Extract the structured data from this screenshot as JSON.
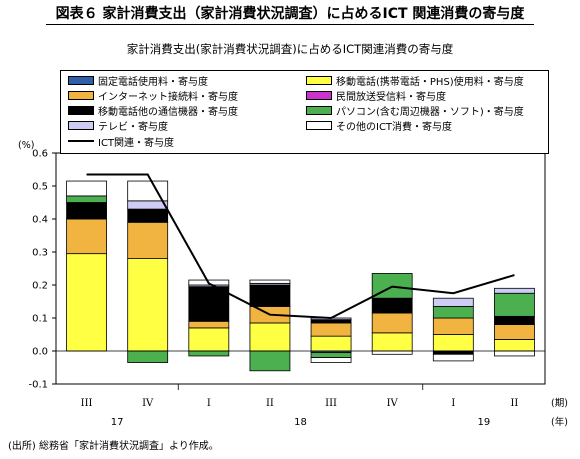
{
  "figure_title": "図表６  家計消費支出（家計消費状況調査）に占めるICT 関連消費の寄与度",
  "source_note": "(出所) 総務省「家計消費状況調査」より作成。",
  "chart_data": {
    "type": "bar",
    "stacked": true,
    "title": "家計消費支出(家計消費状況調査)に占めるICT関連消費の寄与度",
    "ylabel": "(%)",
    "xlabel_suffix_top": "(期)",
    "xlabel_suffix_bottom": "(年)",
    "ylim": [
      -0.1,
      0.6
    ],
    "yticks": [
      -0.1,
      0.0,
      0.1,
      0.2,
      0.3,
      0.4,
      0.5,
      0.6
    ],
    "ytick_labels": [
      "-0.1",
      "0.0",
      "0.1",
      "0.2",
      "0.3",
      "0.4",
      "0.5",
      "0.6"
    ],
    "categories": [
      "III",
      "IV",
      "I",
      "II",
      "III",
      "IV",
      "I",
      "II"
    ],
    "year_labels": [
      {
        "label": "17",
        "from": 0,
        "to": 1
      },
      {
        "label": "18",
        "from": 2,
        "to": 5
      },
      {
        "label": "19",
        "from": 6,
        "to": 7
      }
    ],
    "legend_position": "top",
    "series": [
      {
        "name": "固定電話使用料・寄与度",
        "color": "#2e5fa8",
        "values": [
          0.0,
          0.0,
          0.0,
          0.0,
          -0.005,
          0.0,
          0.0,
          0.0
        ]
      },
      {
        "name": "移動電話(携帯電話・PHS)使用料・寄与度",
        "color": "#ffff44",
        "values": [
          0.295,
          0.28,
          0.07,
          0.085,
          0.045,
          0.055,
          0.05,
          0.035
        ]
      },
      {
        "name": "インターネット接続料・寄与度",
        "color": "#f2b441",
        "values": [
          0.105,
          0.11,
          0.02,
          0.05,
          0.04,
          0.06,
          0.05,
          0.045
        ]
      },
      {
        "name": "民間放送受信料・寄与度",
        "color": "#cc33cc",
        "values": [
          0.0,
          0.0,
          0.0,
          0.0,
          0.0,
          0.0,
          0.0,
          0.0
        ]
      },
      {
        "name": "移動電話他の通信機器・寄与度",
        "color": "#000000",
        "values": [
          0.05,
          0.04,
          0.105,
          0.065,
          0.01,
          0.045,
          -0.01,
          0.025
        ]
      },
      {
        "name": "パソコン(含む周辺機器・ソフト)・寄与度",
        "color": "#4caf50",
        "values": [
          0.02,
          -0.035,
          -0.015,
          -0.06,
          -0.015,
          0.075,
          0.035,
          0.07
        ]
      },
      {
        "name": "テレビ・寄与度",
        "color": "#ccccf5",
        "values": [
          0.0,
          0.025,
          0.005,
          0.005,
          0.005,
          0.0,
          0.025,
          0.015
        ]
      },
      {
        "name": "その他のICT消費・寄与度",
        "color": "#ffffff",
        "values": [
          0.045,
          0.06,
          0.015,
          0.01,
          -0.015,
          -0.01,
          -0.02,
          -0.015
        ]
      }
    ],
    "line": {
      "name": "ICT関連・寄与度",
      "color": "#000000",
      "values": [
        0.535,
        0.535,
        0.205,
        0.11,
        0.1,
        0.195,
        0.175,
        0.23
      ]
    }
  }
}
